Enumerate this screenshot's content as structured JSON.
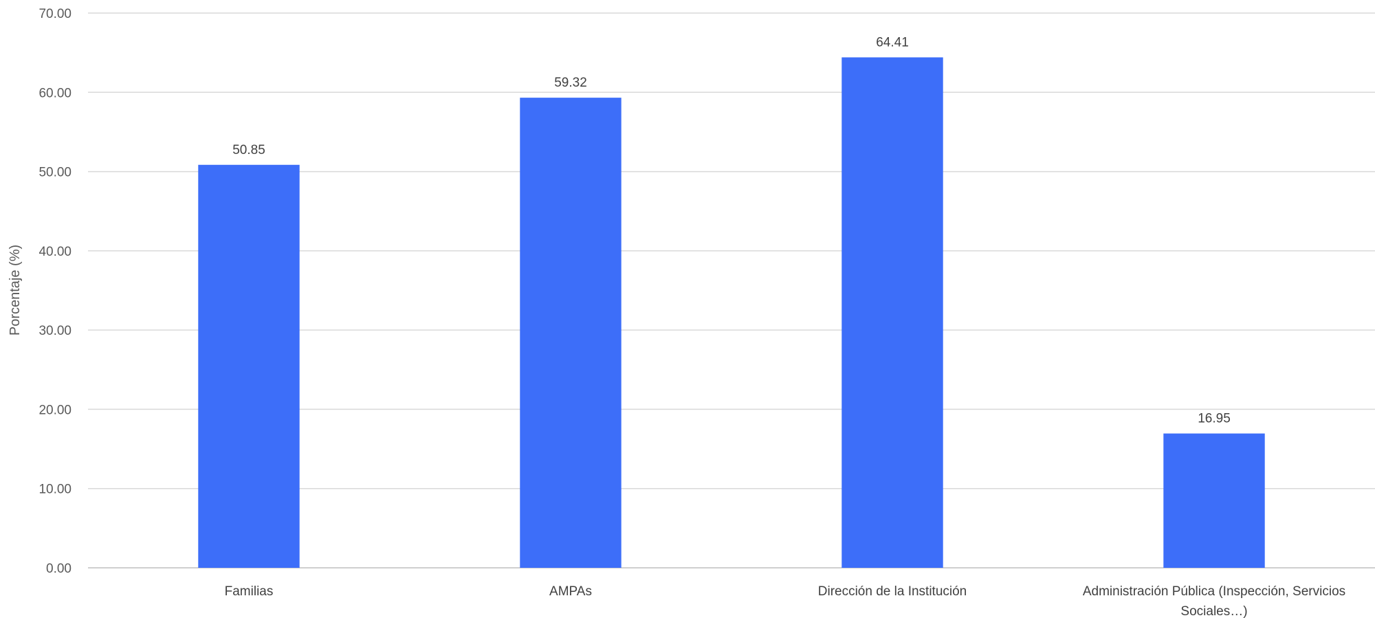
{
  "chart_data": {
    "type": "bar",
    "title": "",
    "xlabel": "",
    "ylabel": "Porcentaje (%)",
    "ylim": [
      0,
      70
    ],
    "y_ticks": [
      "0.00",
      "10.00",
      "20.00",
      "30.00",
      "40.00",
      "50.00",
      "60.00",
      "70.00"
    ],
    "grid": true,
    "legend": "none",
    "bar_color": "#3d6ef9",
    "categories": [
      [
        "Familias"
      ],
      [
        "AMPAs"
      ],
      [
        "Dirección de la Institución"
      ],
      [
        "Administración Pública (Inspección, Servicios",
        "Sociales…)"
      ]
    ],
    "values": [
      50.85,
      59.32,
      64.41,
      16.95
    ],
    "data_labels": [
      "50.85",
      "59.32",
      "64.41",
      "16.95"
    ]
  }
}
